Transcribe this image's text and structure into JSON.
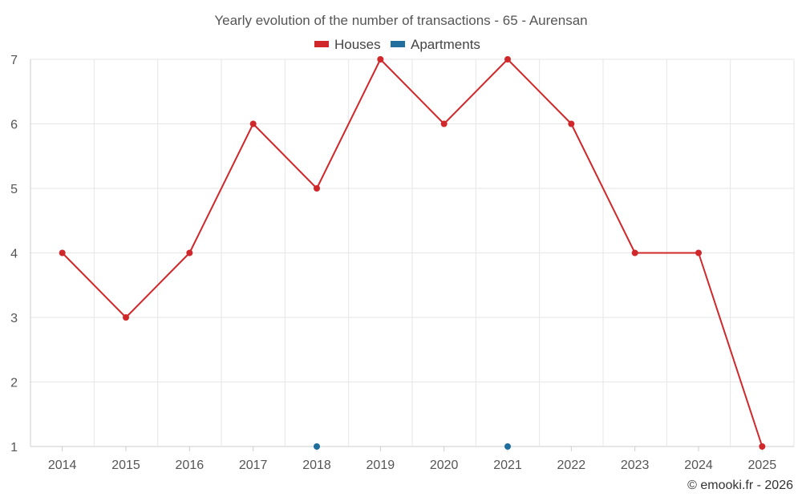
{
  "chart_data": {
    "type": "line",
    "title": "Yearly evolution of the number of transactions - 65 - Aurensan",
    "categories": [
      "2014",
      "2015",
      "2016",
      "2017",
      "2018",
      "2019",
      "2020",
      "2021",
      "2022",
      "2023",
      "2024",
      "2025"
    ],
    "series": [
      {
        "name": "Houses",
        "color": "#d0282a",
        "values": [
          4,
          3,
          4,
          6,
          5,
          7,
          6,
          7,
          6,
          4,
          4,
          1
        ],
        "line": true
      },
      {
        "name": "Apartments",
        "color": "#1f6e9e",
        "values": [
          null,
          null,
          null,
          null,
          1,
          null,
          null,
          1,
          null,
          null,
          null,
          null
        ],
        "line": false
      }
    ],
    "yticks": [
      1,
      2,
      3,
      4,
      5,
      6,
      7
    ],
    "ylim": [
      1,
      7
    ],
    "xlabel": "",
    "ylabel": "",
    "grid": true,
    "legend_position": "top-center"
  },
  "credit": "© emooki.fr - 2026"
}
